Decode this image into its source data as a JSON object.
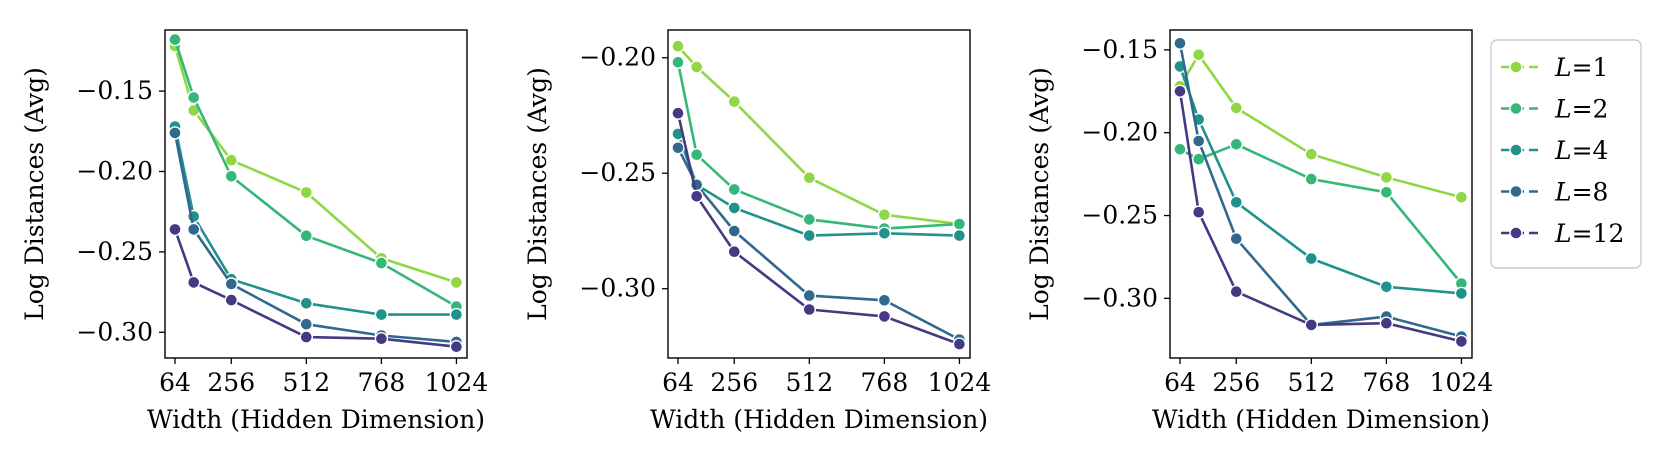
{
  "chart_data": [
    {
      "type": "line",
      "xlabel": "Width (Hidden Dimension)",
      "ylabel": "Log Distances (Avg)",
      "xticks": [
        64,
        256,
        512,
        768,
        1024
      ],
      "yticks": [
        -0.15,
        -0.2,
        -0.25,
        -0.3
      ],
      "ytick_labels": [
        "−0.15",
        "−0.20",
        "−0.25",
        "−0.30"
      ],
      "xlim": [
        30,
        1060
      ],
      "ylim": [
        -0.316,
        -0.112
      ],
      "grid": false,
      "x": [
        64,
        128,
        256,
        512,
        768,
        1024
      ],
      "series": [
        {
          "name": "L=1",
          "color": "#8fd744",
          "values": [
            -0.122,
            -0.162,
            -0.193,
            -0.213,
            -0.254,
            -0.269
          ]
        },
        {
          "name": "L=2",
          "color": "#35b779",
          "values": [
            -0.118,
            -0.154,
            -0.203,
            -0.24,
            -0.257,
            -0.284
          ]
        },
        {
          "name": "L=4",
          "color": "#21918c",
          "values": [
            -0.172,
            -0.228,
            -0.267,
            -0.282,
            -0.289,
            -0.289
          ]
        },
        {
          "name": "L=8",
          "color": "#31688e",
          "values": [
            -0.176,
            -0.236,
            -0.27,
            -0.295,
            -0.302,
            -0.306
          ]
        },
        {
          "name": "L=12",
          "color": "#443983",
          "values": [
            -0.236,
            -0.269,
            -0.28,
            -0.303,
            -0.304,
            -0.309
          ]
        }
      ]
    },
    {
      "type": "line",
      "xlabel": "Width (Hidden Dimension)",
      "ylabel": "Log Distances (Avg)",
      "xticks": [
        64,
        256,
        512,
        768,
        1024
      ],
      "yticks": [
        -0.2,
        -0.25,
        -0.3
      ],
      "ytick_labels": [
        "−0.20",
        "−0.25",
        "−0.30"
      ],
      "xlim": [
        30,
        1060
      ],
      "ylim": [
        -0.33,
        -0.188
      ],
      "grid": false,
      "x": [
        64,
        128,
        256,
        512,
        768,
        1024
      ],
      "series": [
        {
          "name": "L=1",
          "color": "#8fd744",
          "values": [
            -0.195,
            -0.204,
            -0.219,
            -0.252,
            -0.268,
            -0.272
          ]
        },
        {
          "name": "L=2",
          "color": "#35b779",
          "values": [
            -0.202,
            -0.242,
            -0.257,
            -0.27,
            -0.274,
            -0.272
          ]
        },
        {
          "name": "L=4",
          "color": "#21918c",
          "values": [
            -0.233,
            -0.255,
            -0.265,
            -0.277,
            -0.276,
            -0.277
          ]
        },
        {
          "name": "L=8",
          "color": "#31688e",
          "values": [
            -0.239,
            -0.255,
            -0.275,
            -0.303,
            -0.305,
            -0.322
          ]
        },
        {
          "name": "L=12",
          "color": "#443983",
          "values": [
            -0.224,
            -0.26,
            -0.284,
            -0.309,
            -0.312,
            -0.324
          ]
        }
      ]
    },
    {
      "type": "line",
      "xlabel": "Width (Hidden Dimension)",
      "ylabel": "Log Distances (Avg)",
      "xticks": [
        64,
        256,
        512,
        768,
        1024
      ],
      "yticks": [
        -0.15,
        -0.2,
        -0.25,
        -0.3
      ],
      "ytick_labels": [
        "−0.15",
        "−0.20",
        "−0.25",
        "−0.30"
      ],
      "xlim": [
        30,
        1060
      ],
      "ylim": [
        -0.336,
        -0.138
      ],
      "grid": false,
      "x": [
        64,
        128,
        256,
        512,
        768,
        1024
      ],
      "series": [
        {
          "name": "L=1",
          "color": "#8fd744",
          "values": [
            -0.172,
            -0.153,
            -0.185,
            -0.213,
            -0.227,
            -0.239
          ]
        },
        {
          "name": "L=2",
          "color": "#35b779",
          "values": [
            -0.21,
            -0.216,
            -0.207,
            -0.228,
            -0.236,
            -0.291
          ]
        },
        {
          "name": "L=4",
          "color": "#21918c",
          "values": [
            -0.16,
            -0.192,
            -0.242,
            -0.276,
            -0.293,
            -0.297
          ]
        },
        {
          "name": "L=8",
          "color": "#31688e",
          "values": [
            -0.146,
            -0.205,
            -0.264,
            -0.316,
            -0.311,
            -0.323
          ]
        },
        {
          "name": "L=12",
          "color": "#443983",
          "values": [
            -0.175,
            -0.248,
            -0.296,
            -0.316,
            -0.315,
            -0.326
          ]
        }
      ]
    }
  ],
  "legend": {
    "placement": "right",
    "entries": [
      {
        "var": "L",
        "rest": "=1",
        "color": "#8fd744"
      },
      {
        "var": "L",
        "rest": "=2",
        "color": "#35b779"
      },
      {
        "var": "L",
        "rest": "=4",
        "color": "#21918c"
      },
      {
        "var": "L",
        "rest": "=8",
        "color": "#31688e"
      },
      {
        "var": "L",
        "rest": "=12",
        "color": "#443983"
      }
    ]
  }
}
